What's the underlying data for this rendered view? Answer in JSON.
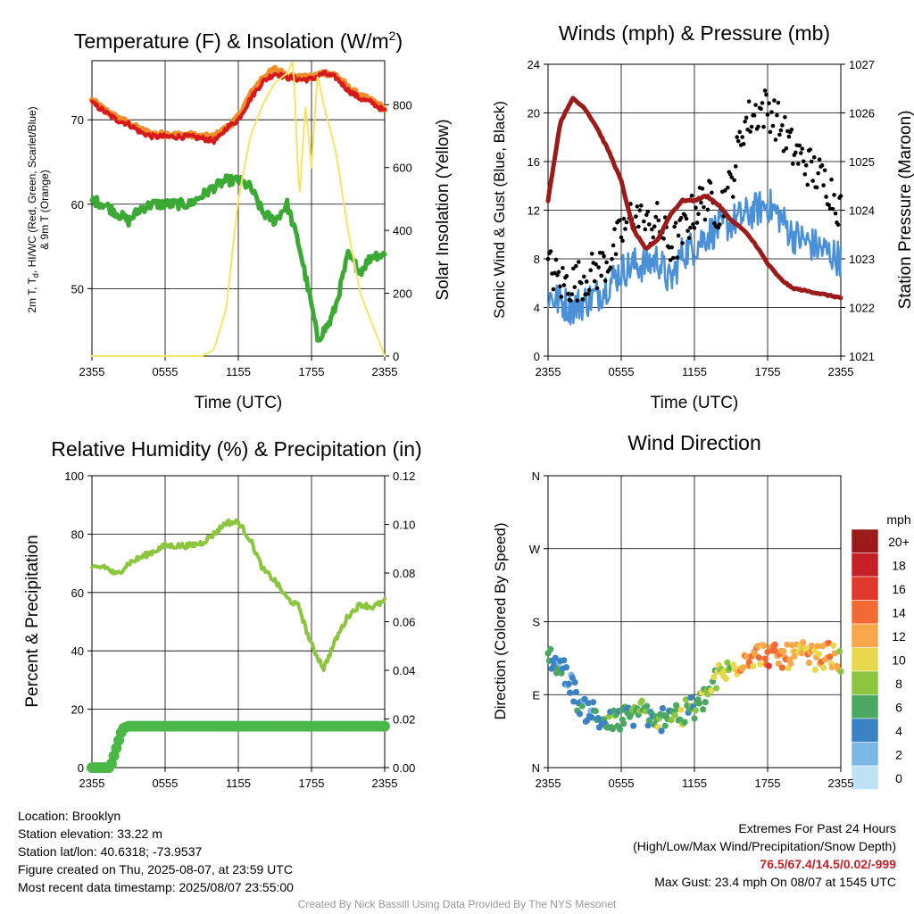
{
  "colors": {
    "temp": "#d7191c",
    "dew": "#3aaa35",
    "t9": "#f28c28",
    "solar": "#f7e463",
    "wind": "#4a90d9",
    "gust": "#000000",
    "pressure": "#9b1b1b",
    "rh": "#8cc63f",
    "precip": "#4ab847"
  },
  "x_ticks": [
    "2355",
    "0555",
    "1155",
    "1755",
    "2355"
  ],
  "x_axis_title": "Time (UTC)",
  "panels": {
    "temp": {
      "title": "Temperature (F) & Insolation (W/m",
      "title_sup": "2",
      "title_end": ")",
      "ylabel_line1": "2m T, T",
      "ylabel_sub": "d",
      "ylabel_line1_end": ", HI/WC (Red, Green, Scarlet/Blue)",
      "ylabel_line2": "& 9m T (Orange)",
      "y2label": "Solar Insolation (Yellow)",
      "y_ticks": [
        "50",
        "60",
        "70"
      ],
      "y2_ticks": [
        "0",
        "200",
        "400",
        "600",
        "800"
      ]
    },
    "wind": {
      "title": "Winds (mph) & Pressure (mb)",
      "ylabel": "Sonic Wind & Gust (Blue, Black)",
      "y2label": "Station Pressure (Maroon)",
      "y_ticks": [
        "0",
        "4",
        "8",
        "12",
        "16",
        "20",
        "24"
      ],
      "y2_ticks": [
        "1021",
        "1022",
        "1023",
        "1024",
        "1025",
        "1026",
        "1027"
      ]
    },
    "rh": {
      "title": "Relative Humidity (%) & Precipitation (in)",
      "ylabel": "Percent & Precipitation",
      "y_ticks": [
        "0",
        "20",
        "40",
        "60",
        "80",
        "100"
      ],
      "y2_ticks": [
        "0.00",
        "0.02",
        "0.04",
        "0.06",
        "0.08",
        "0.10",
        "0.12"
      ]
    },
    "dir": {
      "title": "Wind Direction",
      "ylabel": "Direction (Colored By Speed)",
      "y_ticks": [
        "N",
        "E",
        "S",
        "W",
        "N"
      ],
      "legend_title": "mph",
      "legend_labels": [
        "20+",
        "18",
        "16",
        "14",
        "12",
        "10",
        "8",
        "6",
        "4",
        "2",
        "0"
      ],
      "legend_colors": [
        "#9b1b1b",
        "#c42025",
        "#e03a2d",
        "#f26a34",
        "#f8a84a",
        "#e8d84e",
        "#8cc63f",
        "#4aa862",
        "#3b82c4",
        "#7bb8e4",
        "#bfe3f6"
      ]
    }
  },
  "chart_data": [
    {
      "type": "line",
      "title": "Temperature (F) & Insolation (W/m2)",
      "xlabel": "Time (UTC)",
      "x_range_hours": [
        0,
        24
      ],
      "ylim": [
        42,
        77
      ],
      "y2lim": [
        0,
        940
      ],
      "series": [
        {
          "axis": "left",
          "x": [
            0,
            1,
            2,
            3,
            4,
            5,
            6,
            7,
            8,
            9,
            10,
            10.5,
            11,
            12,
            13,
            14,
            15,
            16,
            17,
            18,
            19,
            20,
            21,
            22,
            23,
            24
          ],
          "values": [
            72,
            71,
            70,
            69.5,
            68.5,
            68,
            68,
            68,
            68,
            67.8,
            67.5,
            68,
            69,
            70,
            72.5,
            74.5,
            75.5,
            75,
            74.8,
            74.8,
            75.5,
            75,
            73.5,
            72.5,
            72,
            71
          ]
        },
        {
          "axis": "left",
          "x": [
            0,
            1,
            2,
            3,
            4,
            5,
            6,
            7,
            8,
            9,
            10,
            11,
            12,
            13,
            14,
            15,
            16,
            17,
            18,
            18.5,
            19,
            19.5,
            20,
            21,
            22,
            23,
            24
          ],
          "values": [
            60.5,
            60,
            59,
            58,
            59.5,
            60,
            60,
            60,
            60,
            61,
            62,
            62.8,
            62.8,
            62,
            59,
            58,
            60,
            55,
            48,
            44,
            45,
            46,
            48,
            54,
            52,
            54,
            54
          ]
        },
        {
          "axis": "left",
          "x": [
            0,
            1,
            2,
            3,
            4,
            5,
            6,
            7,
            8,
            9,
            10,
            11,
            12,
            13,
            14,
            15,
            16,
            17,
            18,
            19,
            20,
            21,
            22,
            23,
            24
          ],
          "values": [
            72.3,
            71.2,
            70.3,
            69.6,
            68.8,
            68.3,
            68.3,
            68.2,
            68.2,
            68,
            68,
            69,
            70.3,
            73,
            75,
            76,
            75.3,
            75,
            75,
            75.6,
            75.3,
            73.8,
            72.8,
            72.2,
            71.3
          ]
        },
        {
          "axis": "right",
          "x": [
            0,
            4,
            8,
            9,
            10,
            11,
            12,
            13,
            14,
            15,
            16,
            16.5,
            17,
            17.5,
            18,
            18.5,
            19,
            20,
            21,
            22,
            23,
            24
          ],
          "values": [
            0,
            0,
            0,
            0,
            20,
            150,
            500,
            700,
            800,
            870,
            900,
            940,
            500,
            800,
            600,
            900,
            800,
            650,
            400,
            200,
            100,
            0
          ]
        }
      ]
    },
    {
      "type": "scatter",
      "title": "Winds (mph) & Pressure (mb)",
      "xlabel": "Time (UTC)",
      "x_range_hours": [
        0,
        24
      ],
      "ylim": [
        0,
        24
      ],
      "y2lim": [
        1021,
        1027
      ],
      "series": [
        {
          "axis": "left",
          "kind": "line",
          "x": [
            0,
            1,
            2,
            3,
            4,
            5,
            6,
            7,
            8,
            9,
            10,
            11,
            12,
            13,
            14,
            15,
            16,
            17,
            18,
            19,
            20,
            21,
            22,
            23,
            24
          ],
          "values": [
            5,
            4.5,
            4,
            4.5,
            5,
            6,
            7,
            7.5,
            7.5,
            8,
            6,
            8.5,
            9,
            10,
            10.5,
            11,
            11.5,
            12,
            12.5,
            11.5,
            10,
            9.5,
            9,
            8.5,
            8
          ]
        },
        {
          "axis": "left",
          "kind": "points",
          "x": [
            0,
            1,
            2,
            3,
            4,
            5,
            6,
            7,
            8,
            9,
            10,
            11,
            12,
            13,
            14,
            15,
            16,
            17,
            18,
            19,
            20,
            21,
            22,
            23,
            24
          ],
          "values": [
            7.5,
            6,
            6,
            6.5,
            7,
            8,
            10,
            12,
            10.5,
            11,
            9,
            10,
            12,
            13,
            12,
            14,
            19,
            20,
            20.5,
            19,
            17,
            16,
            15,
            14,
            12
          ]
        },
        {
          "axis": "right",
          "kind": "line",
          "x": [
            0,
            1,
            2,
            3,
            4,
            5,
            6,
            7,
            8,
            9,
            10,
            11,
            12,
            13,
            14,
            15,
            16,
            17,
            18,
            19,
            20,
            21,
            22,
            23,
            24
          ],
          "values": [
            1024.2,
            1025.8,
            1026.3,
            1026.1,
            1025.7,
            1025.2,
            1024.6,
            1023.6,
            1023.2,
            1023.4,
            1023.9,
            1024.2,
            1024.2,
            1024.3,
            1024.1,
            1023.8,
            1023.6,
            1023.3,
            1022.9,
            1022.6,
            1022.4,
            1022.35,
            1022.3,
            1022.25,
            1022.2
          ]
        }
      ]
    },
    {
      "type": "line",
      "title": "Relative Humidity (%) & Precipitation (in)",
      "x_range_hours": [
        0,
        24
      ],
      "ylim": [
        0,
        100
      ],
      "y2lim": [
        0,
        0.12
      ],
      "series": [
        {
          "axis": "left",
          "x": [
            0,
            1,
            2,
            3,
            4,
            5,
            6,
            7,
            8,
            9,
            10,
            11,
            12,
            13,
            14,
            15,
            16,
            17,
            17.5,
            18,
            19,
            20,
            21,
            22,
            23,
            24
          ],
          "values": [
            68,
            69,
            66,
            70,
            72,
            74,
            76,
            76,
            76,
            77,
            80,
            84,
            84,
            78,
            68,
            64,
            58,
            55,
            48,
            42,
            34,
            44,
            52,
            56,
            55,
            57
          ]
        },
        {
          "axis": "right",
          "x": [
            0,
            1,
            1.5,
            2,
            2.5,
            3,
            24
          ],
          "values": [
            0,
            0,
            0,
            0.008,
            0.016,
            0.017,
            0.017
          ]
        }
      ]
    },
    {
      "type": "scatter",
      "title": "Wind Direction",
      "ylabel": "Direction (Colored By Speed)",
      "x_range_hours": [
        0,
        24
      ],
      "ylim_labels": [
        "N",
        "E",
        "S",
        "W",
        "N"
      ],
      "points": {
        "x": [
          0,
          0.5,
          1,
          1.5,
          2,
          2.5,
          3,
          3.5,
          4,
          5,
          6,
          7,
          7.5,
          8,
          8.5,
          9,
          9.5,
          10,
          10.5,
          11,
          11.5,
          12,
          12.5,
          13,
          13.5,
          14,
          15,
          16,
          17,
          18,
          19,
          20,
          21,
          22,
          23,
          24
        ],
        "direction": [
          140,
          130,
          125,
          115,
          100,
          80,
          70,
          75,
          60,
          55,
          60,
          65,
          75,
          70,
          55,
          50,
          65,
          70,
          70,
          60,
          75,
          70,
          80,
          90,
          100,
          115,
          120,
          135,
          140,
          140,
          135,
          138,
          140,
          135,
          140,
          130
        ],
        "speed": [
          4,
          4,
          4,
          4,
          3,
          4,
          4,
          4,
          5,
          6,
          5,
          6,
          7,
          6,
          5,
          8,
          5,
          6,
          7,
          8,
          6,
          7,
          7,
          8,
          8,
          9,
          8,
          13,
          12,
          13,
          14,
          12,
          11,
          12,
          13,
          9
        ]
      }
    }
  ],
  "info_left": [
    "Location: Brooklyn",
    "Station elevation: 33.22 m",
    "Station lat/lon: 40.6318; -73.9537",
    "Figure created on Thu, 2025-08-07, at 23:59 UTC",
    "Most recent data timestamp: 2025/08/07 23:55:00"
  ],
  "extremes": {
    "title": "Extremes For Past 24 Hours",
    "subtitle": "(High/Low/Max Wind/Precipitation/Snow Depth)",
    "values": "76.5/67.4/14.5/0.02/-999",
    "max_gust": "Max Gust: 23.4 mph On 08/07 at 1545 UTC"
  },
  "credit": "Created By Nick Bassill Using Data Provided By The NYS Mesonet"
}
